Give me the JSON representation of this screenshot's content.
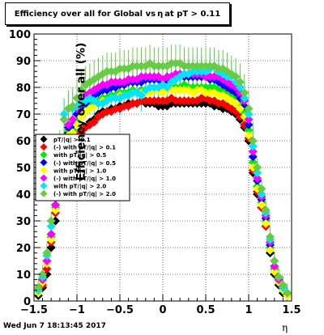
{
  "chart_data": {
    "type": "scatter",
    "title": {
      "main": "Efficiency over all for Global vs",
      "eta": "η",
      "tail": "at pT > 0.11"
    },
    "xlabel": "η",
    "ylabel": "Efficiency over all (%)",
    "xlim": [
      -1.5,
      1.5
    ],
    "ylim": [
      0,
      100
    ],
    "x_ticks": [
      "−1.5",
      "−1",
      "−0.5",
      "0",
      "0.5",
      "1",
      "1.5"
    ],
    "y_ticks": [
      "0",
      "10",
      "20",
      "30",
      "40",
      "50",
      "60",
      "70",
      "80",
      "90",
      "100"
    ],
    "grid": true,
    "legend_position": "left-middle",
    "x": [
      -1.45,
      -1.4,
      -1.35,
      -1.3,
      -1.25,
      -1.2,
      -1.15,
      -1.1,
      -1.05,
      -1.0,
      -0.95,
      -0.9,
      -0.85,
      -0.8,
      -0.75,
      -0.7,
      -0.65,
      -0.6,
      -0.55,
      -0.5,
      -0.45,
      -0.4,
      -0.35,
      -0.3,
      -0.25,
      -0.2,
      -0.15,
      -0.1,
      -0.05,
      0.0,
      0.05,
      0.1,
      0.15,
      0.2,
      0.25,
      0.3,
      0.35,
      0.4,
      0.45,
      0.5,
      0.55,
      0.6,
      0.65,
      0.7,
      0.75,
      0.8,
      0.85,
      0.9,
      0.95,
      1.0,
      1.05,
      1.1,
      1.15,
      1.2,
      1.25,
      1.3,
      1.35,
      1.4,
      1.45
    ],
    "series": [
      {
        "name": "pT/|q| > 0.1",
        "color": "#000000",
        "err": 1.0,
        "values": [
          2,
          5,
          10,
          20,
          30,
          45,
          58,
          63,
          62,
          62,
          64,
          65,
          67,
          68,
          70,
          71,
          71,
          72,
          72,
          73,
          73,
          74,
          74,
          74,
          75,
          74,
          74,
          74,
          73,
          73,
          73,
          74,
          74,
          74,
          74,
          74,
          74,
          74,
          74,
          74,
          74,
          73,
          73,
          72,
          72,
          71,
          70,
          68,
          65,
          60,
          48,
          40,
          35,
          28,
          18,
          10,
          6,
          3,
          2
        ]
      },
      {
        "name": "(-) with pT/|q| > 0.1",
        "color": "#ff0000",
        "err": 1.5,
        "values": [
          3,
          6,
          12,
          22,
          33,
          47,
          59,
          62,
          62,
          62,
          63,
          65,
          66,
          67,
          69,
          70,
          71,
          71,
          72,
          72,
          73,
          73,
          74,
          74,
          75,
          75,
          75,
          75,
          75,
          75,
          75,
          76,
          75,
          75,
          75,
          75,
          75,
          75,
          76,
          76,
          75,
          75,
          74,
          74,
          73,
          72,
          71,
          69,
          66,
          61,
          49,
          41,
          35,
          28,
          19,
          11,
          7,
          4,
          2
        ]
      },
      {
        "name": "with pT/|q| > 0.5",
        "color": "#00ee00",
        "err": 2.0,
        "values": [
          3,
          7,
          14,
          24,
          35,
          49,
          60,
          64,
          64,
          67,
          70,
          72,
          73,
          74,
          75,
          76,
          76,
          77,
          77,
          78,
          78,
          78,
          79,
          78,
          79,
          79,
          79,
          79,
          79,
          79,
          80,
          80,
          80,
          80,
          81,
          80,
          80,
          80,
          80,
          80,
          80,
          80,
          79,
          79,
          78,
          77,
          76,
          74,
          71,
          64,
          52,
          43,
          37,
          30,
          20,
          12,
          8,
          4,
          3
        ]
      },
      {
        "name": "(-) with pT/|q| > 0.5",
        "color": "#0000ff",
        "err": 2.5,
        "values": [
          4,
          8,
          15,
          25,
          36,
          50,
          61,
          65,
          66,
          70,
          72,
          74,
          76,
          77,
          78,
          79,
          79,
          80,
          80,
          81,
          81,
          82,
          82,
          82,
          82,
          83,
          83,
          83,
          83,
          82,
          83,
          84,
          84,
          84,
          84,
          84,
          84,
          84,
          84,
          84,
          83,
          83,
          82,
          81,
          80,
          79,
          78,
          76,
          73,
          66,
          54,
          45,
          38,
          31,
          21,
          13,
          8,
          5,
          3
        ]
      },
      {
        "name": "with pT/|q| > 1.0",
        "color": "#ffff00",
        "err": 3.0,
        "values": [
          3,
          7,
          14,
          23,
          34,
          47,
          58,
          62,
          63,
          66,
          69,
          71,
          72,
          73,
          74,
          75,
          75,
          76,
          76,
          77,
          77,
          77,
          78,
          78,
          78,
          78,
          78,
          79,
          79,
          78,
          79,
          79,
          79,
          79,
          79,
          79,
          78,
          79,
          79,
          78,
          78,
          78,
          77,
          77,
          76,
          75,
          74,
          72,
          69,
          62,
          50,
          42,
          36,
          29,
          19,
          11,
          7,
          4,
          2
        ]
      },
      {
        "name": "(-) with pT/|q| > 1.0",
        "color": "#ff00ff",
        "err": 3.5,
        "values": [
          4,
          8,
          15,
          25,
          36,
          50,
          61,
          66,
          68,
          72,
          75,
          77,
          78,
          79,
          80,
          81,
          81,
          82,
          82,
          82,
          82,
          83,
          83,
          83,
          84,
          84,
          84,
          84,
          84,
          83,
          84,
          84,
          85,
          85,
          85,
          85,
          85,
          85,
          85,
          84,
          84,
          84,
          84,
          83,
          82,
          81,
          80,
          78,
          75,
          68,
          56,
          46,
          39,
          32,
          22,
          13,
          8,
          5,
          3
        ]
      },
      {
        "name": "with pT/|q| > 2.0",
        "color": "#00e5ff",
        "err": 6.0,
        "values": [
          4,
          9,
          17,
          28,
          40,
          55,
          70,
          72,
          72,
          73,
          74,
          75,
          76,
          75,
          74,
          74,
          75,
          76,
          76,
          76,
          77,
          77,
          78,
          78,
          77,
          79,
          80,
          80,
          80,
          81,
          80,
          82,
          83,
          84,
          85,
          85,
          86,
          86,
          86,
          86,
          87,
          88,
          86,
          85,
          84,
          84,
          82,
          80,
          76,
          70,
          58,
          48,
          40,
          33,
          23,
          15,
          9,
          5,
          3
        ]
      },
      {
        "name": "(-) with pT/|q| > 2.0",
        "color": "#66cc44",
        "err": 7.0,
        "values": [
          5,
          10,
          18,
          30,
          42,
          57,
          68,
          72,
          73,
          76,
          79,
          81,
          82,
          83,
          84,
          85,
          86,
          86,
          86,
          87,
          87,
          87,
          88,
          88,
          88,
          88,
          89,
          88,
          88,
          88,
          88,
          89,
          89,
          89,
          88,
          88,
          88,
          88,
          88,
          88,
          88,
          88,
          87,
          87,
          86,
          85,
          84,
          82,
          78,
          72,
          60,
          50,
          42,
          34,
          24,
          15,
          9,
          6,
          3
        ]
      }
    ]
  },
  "footer": {
    "timestamp": "Wed Jun  7 18:13:45 2017"
  }
}
